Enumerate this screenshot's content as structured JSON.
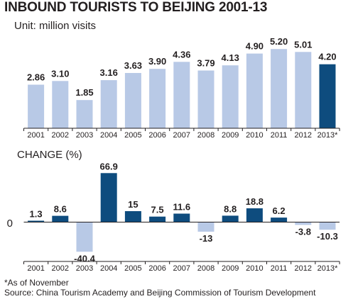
{
  "title": "INBOUND TOURISTS TO BEIJING 2001-13",
  "unit_label": "Unit: million visits",
  "change_label": "CHANGE (%)",
  "zero_label": "0",
  "footnote_1": "*As of November",
  "footnote_2": "Source: China Tourism Academy and Beijing Commission of Tourism Development",
  "colors": {
    "light_bar": "#b8c9e6",
    "dark_bar": "#0e4c7e",
    "axis": "#231f20",
    "text": "#231f20"
  },
  "chart_data": [
    {
      "type": "bar",
      "categories": [
        "2001",
        "2002",
        "2003",
        "2004",
        "2005",
        "2006",
        "2007",
        "2008",
        "2009",
        "2010",
        "2011",
        "2012",
        "2013*"
      ],
      "values": [
        2.86,
        3.1,
        1.85,
        3.16,
        3.63,
        3.9,
        4.36,
        3.79,
        4.13,
        4.9,
        5.2,
        5.01,
        4.2
      ],
      "value_labels": [
        "2.86",
        "3.10",
        "1.85",
        "3.16",
        "3.63",
        "3.90",
        "4.36",
        "3.79",
        "4.13",
        "4.90",
        "5.20",
        "5.01",
        "4.20"
      ],
      "highlight_index": 12,
      "title": "INBOUND TOURISTS TO BEIJING 2001-13",
      "unit": "Unit: million visits",
      "ylim": [
        0,
        5.2
      ]
    },
    {
      "type": "bar",
      "categories": [
        "2001",
        "2002",
        "2003",
        "2004",
        "2005",
        "2006",
        "2007",
        "2008",
        "2009",
        "2010",
        "2011",
        "2012",
        "2013*"
      ],
      "values": [
        1.3,
        8.6,
        -40.4,
        66.9,
        15,
        7.5,
        11.6,
        -13,
        8.8,
        18.8,
        6.2,
        -3.8,
        -10.3
      ],
      "value_labels": [
        "1.3",
        "8.6",
        "-40.4",
        "66.9",
        "15",
        "7.5",
        "11.6",
        "-13",
        "8.8",
        "18.8",
        "6.2",
        "-3.8",
        "-10.3"
      ],
      "title": "CHANGE (%)",
      "ylim": [
        -40.4,
        66.9
      ]
    }
  ]
}
